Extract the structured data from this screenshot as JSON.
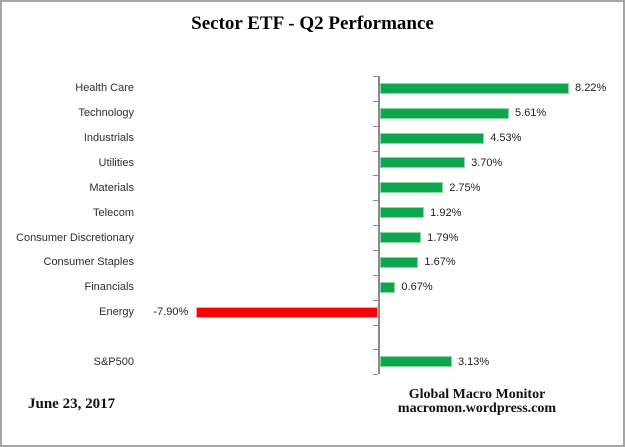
{
  "chart_data": {
    "type": "bar",
    "orientation": "horizontal",
    "title": "Sector ETF - Q2 Performance",
    "rows": [
      {
        "category": "Health Care",
        "value": 8.22,
        "label": "8.22%"
      },
      {
        "category": "Technology",
        "value": 5.61,
        "label": "5.61%"
      },
      {
        "category": "Industrials",
        "value": 4.53,
        "label": "4.53%"
      },
      {
        "category": "Utilities",
        "value": 3.7,
        "label": "3.70%"
      },
      {
        "category": "Materials",
        "value": 2.75,
        "label": "2.75%"
      },
      {
        "category": "Telecom",
        "value": 1.92,
        "label": "1.92%"
      },
      {
        "category": "Consumer Discretionary",
        "value": 1.79,
        "label": "1.79%"
      },
      {
        "category": "Consumer Staples",
        "value": 1.67,
        "label": "1.67%"
      },
      {
        "category": "Financials",
        "value": 0.67,
        "label": "0.67%"
      },
      {
        "category": "Energy",
        "value": -7.9,
        "label": "-7.90%"
      },
      {
        "category": "",
        "value": null,
        "label": "",
        "spacer": true
      },
      {
        "category": "S&P500",
        "value": 3.13,
        "label": "3.13%"
      }
    ],
    "colors": {
      "positive": "#0ea64c",
      "negative": "#ff0000",
      "axis": "#8a8a8a"
    },
    "axis": {
      "baseline": 0,
      "gridlines": false,
      "tick_marks": true,
      "xlim": [
        -8.5,
        10.7
      ]
    },
    "legend": null,
    "xlabel": "",
    "ylabel": ""
  },
  "footer": {
    "date": "June 23, 2017",
    "source_line1": "Global Macro Monitor",
    "source_line2": "macromon.wordpress.com"
  }
}
